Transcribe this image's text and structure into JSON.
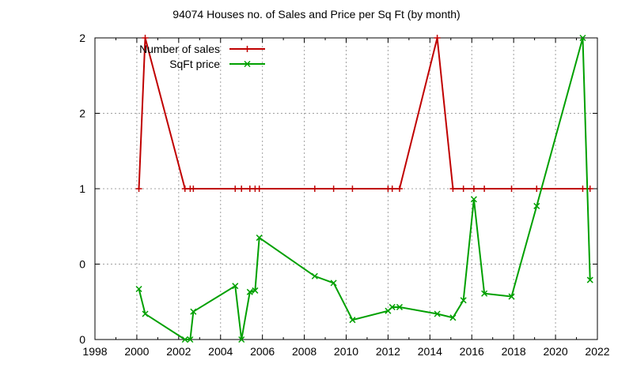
{
  "chart_data": {
    "type": "line",
    "title": "94074 Houses no. of Sales and Price per Sq Ft (by month)",
    "xlabel": "",
    "ylabel": "",
    "xlim": [
      1998,
      2022
    ],
    "ylim": [
      0,
      2
    ],
    "x_ticks": [
      1998,
      2000,
      2002,
      2004,
      2006,
      2008,
      2010,
      2012,
      2014,
      2016,
      2018,
      2020,
      2022
    ],
    "y_ticks": [
      0,
      0.5,
      1,
      1.5,
      2
    ],
    "y_tick_labels": [
      "0",
      "0",
      "1",
      "2",
      "2"
    ],
    "grid": true,
    "legend_position": "top-left",
    "series": [
      {
        "name": "Number of sales",
        "color": "#c00000",
        "marker": "plus",
        "points": [
          [
            2000.1,
            1
          ],
          [
            2000.4,
            2
          ],
          [
            2002.3,
            1
          ],
          [
            2002.55,
            1
          ],
          [
            2002.7,
            1
          ],
          [
            2004.7,
            1
          ],
          [
            2005.0,
            1
          ],
          [
            2005.4,
            1
          ],
          [
            2005.65,
            1
          ],
          [
            2005.85,
            1
          ],
          [
            2008.5,
            1
          ],
          [
            2009.4,
            1
          ],
          [
            2010.3,
            1
          ],
          [
            2012.0,
            1
          ],
          [
            2012.2,
            1
          ],
          [
            2012.55,
            1
          ],
          [
            2014.35,
            2
          ],
          [
            2015.1,
            1
          ],
          [
            2015.6,
            1
          ],
          [
            2016.1,
            1
          ],
          [
            2016.6,
            1
          ],
          [
            2017.9,
            1
          ],
          [
            2019.1,
            1
          ],
          [
            2021.3,
            1
          ],
          [
            2021.65,
            1
          ]
        ]
      },
      {
        "name": "SqFt price",
        "color": "#00a000",
        "marker": "cross",
        "points": [
          [
            2000.1,
            0.335
          ],
          [
            2000.4,
            0.17
          ],
          [
            2002.3,
            0.0
          ],
          [
            2002.55,
            0.0
          ],
          [
            2002.7,
            0.185
          ],
          [
            2004.7,
            0.355
          ],
          [
            2005.0,
            0.0
          ],
          [
            2005.4,
            0.315
          ],
          [
            2005.65,
            0.325
          ],
          [
            2005.85,
            0.675
          ],
          [
            2008.5,
            0.42
          ],
          [
            2009.4,
            0.375
          ],
          [
            2010.3,
            0.13
          ],
          [
            2012.0,
            0.19
          ],
          [
            2012.2,
            0.215
          ],
          [
            2012.55,
            0.215
          ],
          [
            2014.35,
            0.17
          ],
          [
            2015.1,
            0.145
          ],
          [
            2015.6,
            0.26
          ],
          [
            2016.1,
            0.93
          ],
          [
            2016.6,
            0.305
          ],
          [
            2017.9,
            0.285
          ],
          [
            2019.1,
            0.885
          ],
          [
            2021.3,
            2.0
          ],
          [
            2021.65,
            0.395
          ]
        ]
      }
    ]
  }
}
